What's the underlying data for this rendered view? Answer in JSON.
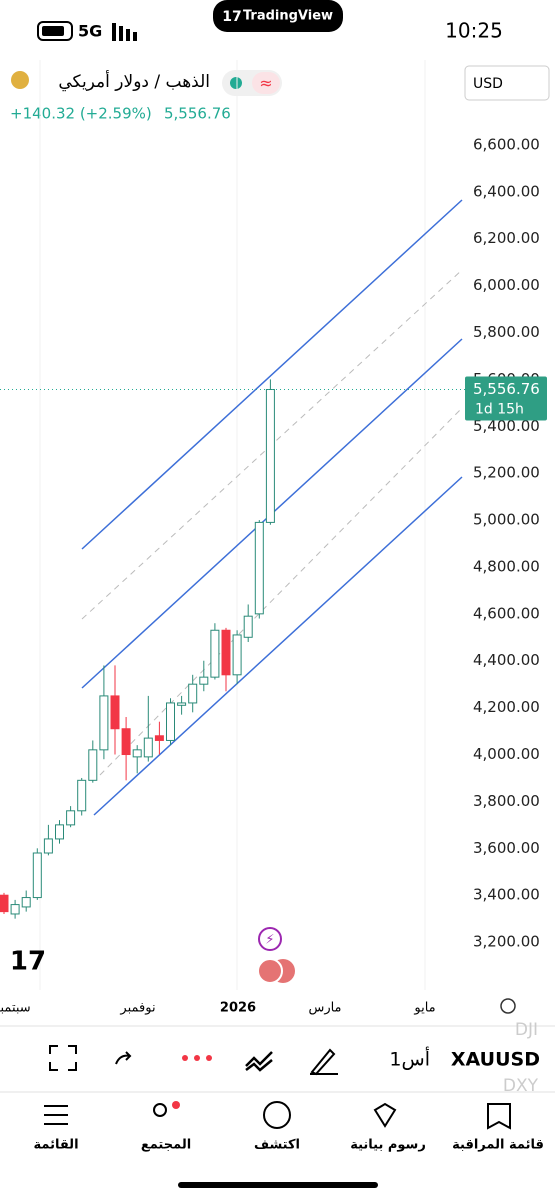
{
  "status": {
    "network": "5G",
    "time": "10:25",
    "app": "TradingView"
  },
  "header": {
    "symbol_name": "الذهب / دولار أمريكي",
    "currency": "USD",
    "change": "+140.32 (+2.59%)",
    "price": "5,556.76"
  },
  "chart_data": {
    "type": "candlestick",
    "up_color": "#22ab94",
    "down_color": "#f23645",
    "open": [
      3400,
      3320,
      3350,
      3390,
      3580,
      3640,
      3700,
      3760,
      3890,
      4020,
      4250,
      4110,
      3990,
      3990,
      4080,
      4060,
      4210,
      4220,
      4300,
      4330,
      4530,
      4340,
      4500,
      4600,
      4990
    ],
    "high": [
      3410,
      3380,
      3420,
      3600,
      3700,
      3720,
      3780,
      3900,
      4060,
      4380,
      4380,
      4160,
      4040,
      4250,
      4140,
      4240,
      4250,
      4340,
      4400,
      4560,
      4540,
      4530,
      4640,
      5000,
      5600
    ],
    "low": [
      3320,
      3300,
      3330,
      3380,
      3570,
      3620,
      3690,
      3740,
      3880,
      3980,
      4000,
      3890,
      3920,
      3970,
      4000,
      4040,
      4170,
      4180,
      4270,
      4320,
      4270,
      4300,
      4480,
      4580,
      4980
    ],
    "close": [
      3330,
      3360,
      3390,
      3580,
      3640,
      3700,
      3760,
      3890,
      4020,
      4250,
      4110,
      4000,
      4020,
      4070,
      4060,
      4220,
      4220,
      4300,
      4330,
      4530,
      4340,
      4510,
      4590,
      4990,
      5556.76
    ],
    "ylim": [
      3000,
      6800
    ],
    "yticks": [
      {
        "value": 3200,
        "label": "3,200.00"
      },
      {
        "value": 3400,
        "label": "3,400.00"
      },
      {
        "value": 3600,
        "label": "3,600.00"
      },
      {
        "value": 3800,
        "label": "3,800.00"
      },
      {
        "value": 4000,
        "label": "4,000.00"
      },
      {
        "value": 4200,
        "label": "4,200.00"
      },
      {
        "value": 4400,
        "label": "4,400.00"
      },
      {
        "value": 4600,
        "label": "4,600.00"
      },
      {
        "value": 4800,
        "label": "4,800.00"
      },
      {
        "value": 5000,
        "label": "5,000.00"
      },
      {
        "value": 5200,
        "label": "5,200.00"
      },
      {
        "value": 5400,
        "label": "5,400.00"
      },
      {
        "value": 5600,
        "label": "5,600.00"
      },
      {
        "value": 5800,
        "label": "5,800.00"
      },
      {
        "value": 6000,
        "label": "6,000.00"
      },
      {
        "value": 6200,
        "label": "6,200.00"
      },
      {
        "value": 6400,
        "label": "6,400.00"
      },
      {
        "value": 6600,
        "label": "6,600.00"
      }
    ],
    "x_labels": [
      "سبتمبر",
      "نوفمبر",
      "2026",
      "مارس",
      "مايو"
    ],
    "last_price": {
      "value": 5556.76,
      "label": "5,556.76",
      "countdown": "1d 15h"
    }
  },
  "toolbar": {
    "symbol": "XAUUSD",
    "interval": "1أس",
    "ghost": [
      "DJI",
      "DXY"
    ]
  },
  "nav": [
    "القائمة",
    "المجتمع",
    "اكتشف",
    "رسوم بيانية",
    "قائمة المراقبة"
  ]
}
